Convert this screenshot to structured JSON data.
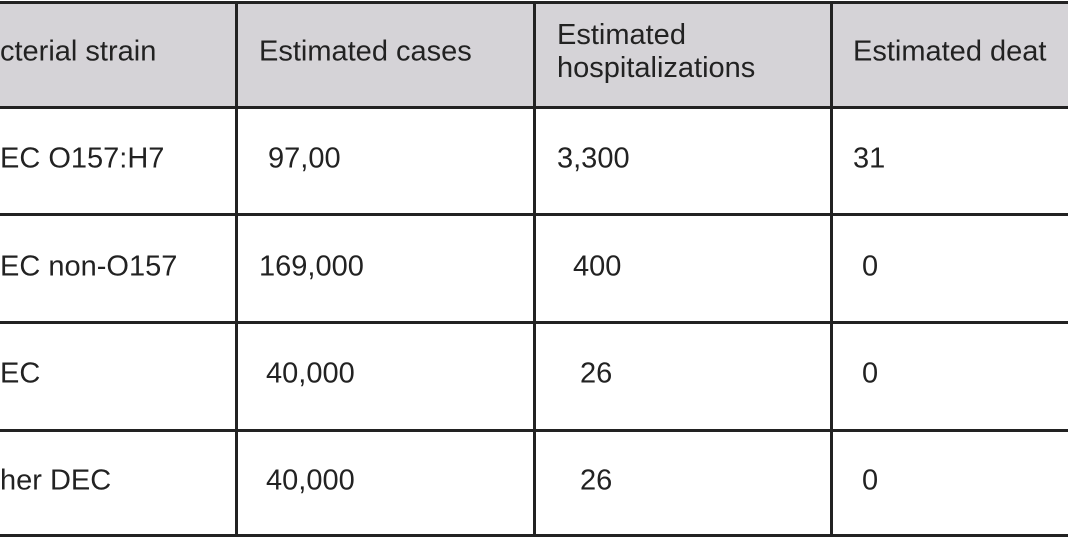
{
  "table": {
    "header": [
      "cterial strain",
      "Estimated cases",
      "Estimated hospitalizations",
      "Estimated deat"
    ],
    "rows": [
      [
        "EC O157:H7",
        "97,00",
        "3,300",
        "31"
      ],
      [
        "EC non-O157",
        "169,000",
        "400",
        "0"
      ],
      [
        "EC",
        "40,000",
        "26",
        "0"
      ],
      [
        "her DEC",
        "40,000",
        "26",
        "0"
      ]
    ]
  }
}
